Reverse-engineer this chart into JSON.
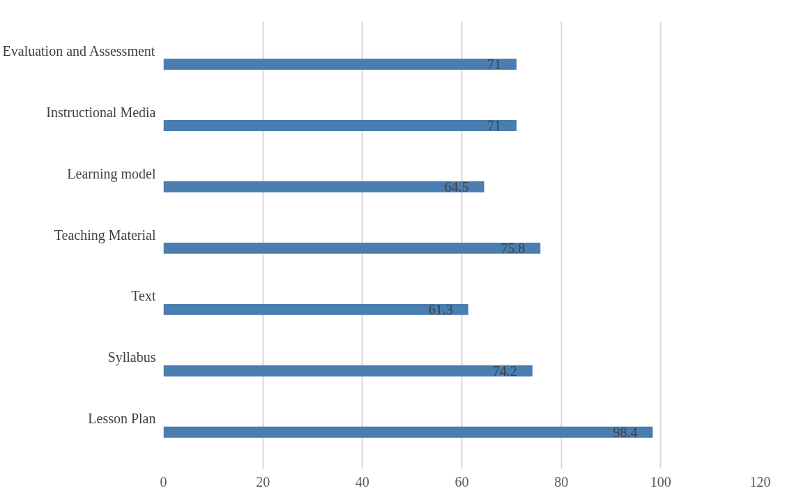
{
  "chart_data": {
    "type": "bar",
    "orientation": "horizontal",
    "categories": [
      "Evaluation and Assessment",
      "Instructional Media",
      "Learning model",
      "Teaching Material",
      "Text",
      "Syllabus",
      "Lesson Plan"
    ],
    "values": [
      71,
      71,
      64.5,
      75.8,
      61.3,
      74.2,
      98.4
    ],
    "color": "#4a7eb0",
    "xlim": [
      0,
      120
    ],
    "xticks": [
      0,
      20,
      40,
      60,
      80,
      100,
      120
    ],
    "grid": "x",
    "data_labels": true
  }
}
